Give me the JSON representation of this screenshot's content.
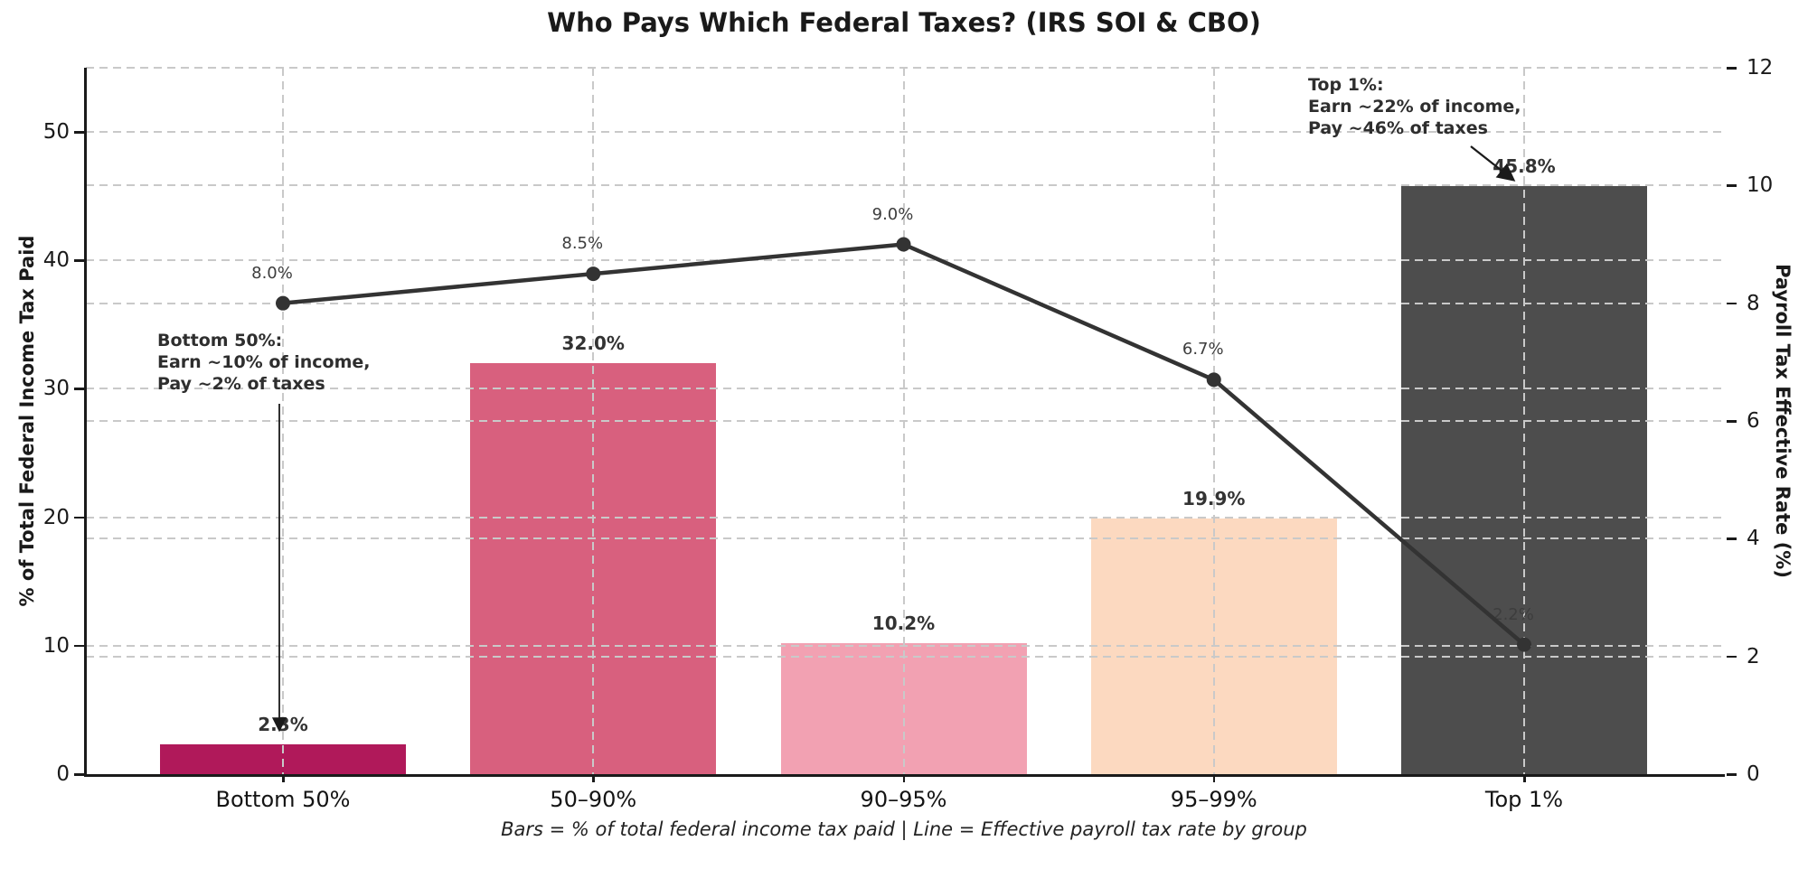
{
  "title": "Who Pays Which Federal Taxes? (IRS SOI & CBO)",
  "caption": "Bars = % of total federal income tax paid | Line = Effective payroll tax rate by group",
  "chart_data": {
    "type": "bar",
    "subtype": "combo-bar-line-dual-axis",
    "categories": [
      "Bottom 50%",
      "50–90%",
      "90–95%",
      "95–99%",
      "Top 1%"
    ],
    "series": [
      {
        "name": "% of total federal income tax paid",
        "type": "bar",
        "axis": "left",
        "values": [
          2.3,
          32.0,
          10.2,
          19.9,
          45.8
        ],
        "labels": [
          "2.3%",
          "32.0%",
          "10.2%",
          "19.9%",
          "45.8%"
        ],
        "colors": [
          "#b0195a",
          "#d8607e",
          "#f2a1b2",
          "#fcd9c0",
          "#4d4d4d"
        ]
      },
      {
        "name": "Effective payroll tax rate by group",
        "type": "line",
        "axis": "right",
        "values": [
          8.0,
          8.5,
          9.0,
          6.7,
          2.2
        ],
        "labels": [
          "8.0%",
          "8.5%",
          "9.0%",
          "6.7%",
          "2.2%"
        ],
        "color": "#333333"
      }
    ],
    "left_axis": {
      "label": "% of Total Federal Income Tax Paid",
      "min": 0,
      "max": 55,
      "ticks": [
        0,
        10,
        20,
        30,
        40,
        50
      ]
    },
    "right_axis": {
      "label": "Payroll Tax Effective Rate (%)",
      "min": 0,
      "max": 12,
      "ticks": [
        0,
        2,
        4,
        6,
        8,
        10,
        12
      ]
    },
    "grid": {
      "visible": true,
      "style": "dashed",
      "color": "#c9c9c9"
    },
    "annotations": [
      {
        "text": "Bottom 50%:\nEarn ~10% of income,\nPay ~2% of taxes",
        "points_to": "Bottom 50% bar"
      },
      {
        "text": "Top 1%:\nEarn ~22% of income,\nPay ~46% of taxes",
        "points_to": "Top 1% bar"
      }
    ]
  }
}
